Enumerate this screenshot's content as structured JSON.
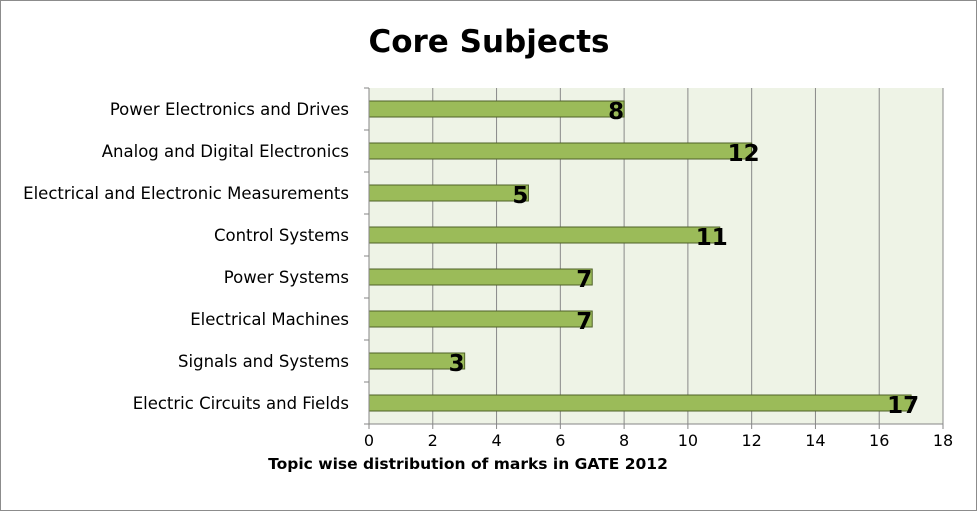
{
  "chart_data": {
    "type": "bar",
    "orientation": "horizontal",
    "title": "Core Subjects",
    "xlabel": "Topic wise distribution of marks in GATE 2012",
    "ylabel": "",
    "categories": [
      "Power Electronics and Drives",
      "Analog and Digital Electronics",
      "Electrical and Electronic Measurements",
      "Control Systems",
      "Power Systems",
      "Electrical Machines",
      "Signals and Systems",
      "Electric Circuits and Fields"
    ],
    "values": [
      8,
      12,
      5,
      11,
      7,
      7,
      3,
      17
    ],
    "data_labels": [
      "8",
      "12",
      "5",
      "11",
      "7",
      "7",
      "3",
      "17"
    ],
    "xlim": [
      0,
      18
    ],
    "xticks": [
      0,
      2,
      4,
      6,
      8,
      10,
      12,
      14,
      16,
      18
    ],
    "tick_labels": [
      "0",
      "2",
      "4",
      "6",
      "8",
      "10",
      "12",
      "14",
      "16",
      "18"
    ],
    "grid": "vertical",
    "legend": "none",
    "colors": {
      "bar_fill": "#9bbb59",
      "bar_stroke": "#4f6228",
      "plot_background": "#eef3e6",
      "gridline": "#888888"
    }
  }
}
